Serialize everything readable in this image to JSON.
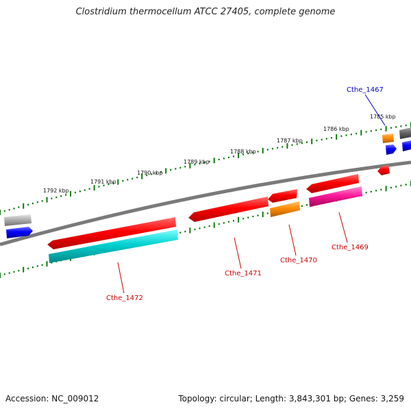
{
  "title": "Clostridium thermocellum ATCC 27405, complete genome",
  "footer": {
    "accession": "Accession: NC_009012",
    "topology": "Topology: circular; Length: 3,843,301 bp; Genes: 3,259"
  },
  "ticks": [
    "1792 kbp",
    "1791 kbp",
    "1790 kbp",
    "1789 kbp",
    "1788 kbp",
    "1787 kbp",
    "1786 kbp",
    "1785 kbp"
  ],
  "genes": {
    "g1467": "Cthe_1467",
    "g1469": "Cthe_1469",
    "g1470": "Cthe_1470",
    "g1471": "Cthe_1471",
    "g1472": "Cthe_1472"
  },
  "colors": {
    "cds_red": "#ff0000",
    "cyan": "#00cccc",
    "orange": "#ff8c00",
    "magenta": "#ff1493",
    "blue": "#0000ff",
    "gray": "#a0a0a0",
    "darkgray": "#555555",
    "tick_green": "#0a7a0a",
    "label_red": "#cc0000",
    "label_blue": "#0000cc"
  }
}
